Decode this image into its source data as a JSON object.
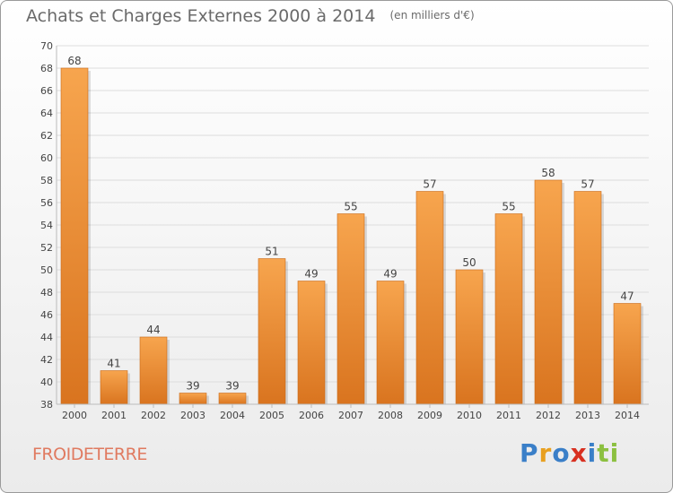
{
  "header": {
    "title": "Achats et Charges Externes 2000 à 2014",
    "unit": "(en milliers d'€)"
  },
  "footer": {
    "commune": "FROIDETERRE",
    "logo_text": "Proxiti",
    "logo_colors": [
      "#3a7fc8",
      "#e8a020",
      "#3a7fc8",
      "#d83020",
      "#3a7fc8",
      "#8cc040",
      "#8cc040"
    ]
  },
  "colors": {
    "bar_light": "#f7a54e",
    "bar_dark": "#d9741f",
    "grid": "#dddddd",
    "axis_text": "#444444"
  },
  "chart_data": {
    "type": "bar",
    "categories": [
      "2000",
      "2001",
      "2002",
      "2003",
      "2004",
      "2005",
      "2006",
      "2007",
      "2008",
      "2009",
      "2010",
      "2011",
      "2012",
      "2013",
      "2014"
    ],
    "values": [
      68,
      41,
      44,
      39,
      39,
      51,
      49,
      55,
      49,
      57,
      50,
      55,
      58,
      57,
      47
    ],
    "title": "Achats et Charges Externes 2000 à 2014",
    "ylim": [
      38,
      70
    ],
    "yticks": [
      38,
      40,
      42,
      44,
      46,
      48,
      50,
      52,
      54,
      56,
      58,
      60,
      62,
      64,
      66,
      68,
      70
    ],
    "grid": true
  }
}
